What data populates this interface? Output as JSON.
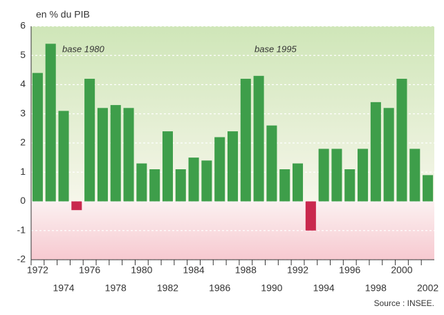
{
  "chart_data": {
    "type": "bar",
    "axis_label": "en % du PIB",
    "annotations": [
      "base 1980",
      "base 1995"
    ],
    "source": "Source : INSEE.",
    "categories": [
      "1972",
      null,
      "1974",
      null,
      "1976",
      null,
      "1978",
      null,
      "1980",
      null,
      "1982",
      null,
      "1984",
      null,
      "1986",
      null,
      "1988",
      null,
      "1990",
      null,
      "1992",
      null,
      "1994",
      null,
      "1996",
      null,
      "1998",
      null,
      "2000",
      null,
      "2002"
    ],
    "values": [
      4.4,
      5.4,
      3.1,
      -0.3,
      4.2,
      3.2,
      3.3,
      3.2,
      1.3,
      1.1,
      2.4,
      1.1,
      1.5,
      1.4,
      2.2,
      2.4,
      4.2,
      4.3,
      2.6,
      1.1,
      1.3,
      -1.0,
      1.8,
      1.8,
      1.1,
      1.8,
      3.4,
      3.2,
      4.2,
      1.8,
      0.9
    ],
    "color": "#3e9e4a",
    "negative_color": "#c9284d",
    "ylim": [
      -2,
      6
    ],
    "yticks": [
      -2,
      -1,
      0,
      1,
      2,
      3,
      4,
      5,
      6
    ],
    "grid": true
  }
}
